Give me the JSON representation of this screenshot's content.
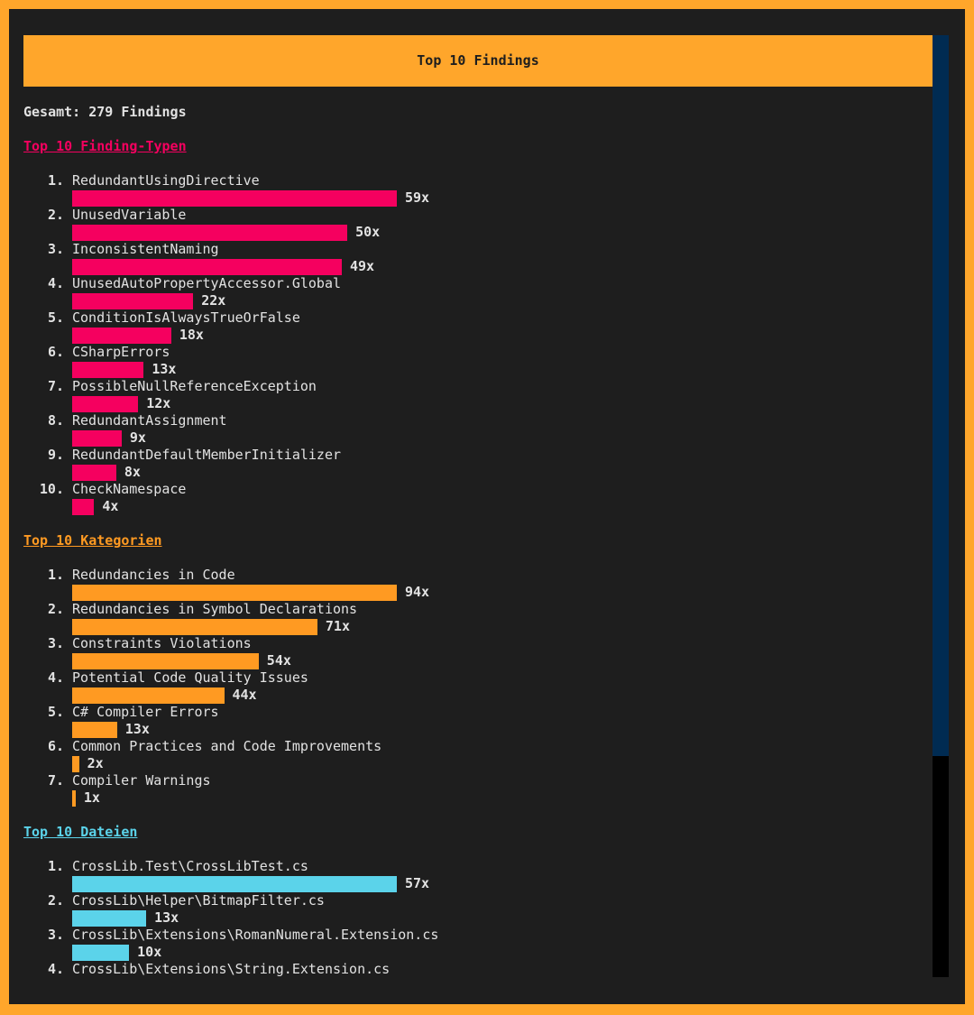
{
  "header": {
    "title": "Top 10 Findings"
  },
  "summary": "Gesamt: 279 Findings",
  "sections": [
    {
      "title": "Top 10 Finding-Typen",
      "color": "#f5005f",
      "items": [
        {
          "rank": "1.",
          "name": "RedundantUsingDirective",
          "count": 59,
          "count_label": "59x"
        },
        {
          "rank": "2.",
          "name": "UnusedVariable",
          "count": 50,
          "count_label": "50x"
        },
        {
          "rank": "3.",
          "name": "InconsistentNaming",
          "count": 49,
          "count_label": "49x"
        },
        {
          "rank": "4.",
          "name": "UnusedAutoPropertyAccessor.Global",
          "count": 22,
          "count_label": "22x"
        },
        {
          "rank": "5.",
          "name": "ConditionIsAlwaysTrueOrFalse",
          "count": 18,
          "count_label": "18x"
        },
        {
          "rank": "6.",
          "name": "CSharpErrors",
          "count": 13,
          "count_label": "13x"
        },
        {
          "rank": "7.",
          "name": "PossibleNullReferenceException",
          "count": 12,
          "count_label": "12x"
        },
        {
          "rank": "8.",
          "name": "RedundantAssignment",
          "count": 9,
          "count_label": "9x"
        },
        {
          "rank": "9.",
          "name": "RedundantDefaultMemberInitializer",
          "count": 8,
          "count_label": "8x"
        },
        {
          "rank": "10.",
          "name": "CheckNamespace",
          "count": 4,
          "count_label": "4x"
        }
      ]
    },
    {
      "title": "Top 10 Kategorien",
      "color": "#ff9a22",
      "items": [
        {
          "rank": "1.",
          "name": "Redundancies in Code",
          "count": 94,
          "count_label": "94x"
        },
        {
          "rank": "2.",
          "name": "Redundancies in Symbol Declarations",
          "count": 71,
          "count_label": "71x"
        },
        {
          "rank": "3.",
          "name": "Constraints Violations",
          "count": 54,
          "count_label": "54x"
        },
        {
          "rank": "4.",
          "name": "Potential Code Quality Issues",
          "count": 44,
          "count_label": "44x"
        },
        {
          "rank": "5.",
          "name": "C# Compiler Errors",
          "count": 13,
          "count_label": "13x"
        },
        {
          "rank": "6.",
          "name": "Common Practices and Code Improvements",
          "count": 2,
          "count_label": "2x"
        },
        {
          "rank": "7.",
          "name": "Compiler Warnings",
          "count": 1,
          "count_label": "1x"
        }
      ]
    },
    {
      "title": "Top 10 Dateien",
      "color": "#5bd3ea",
      "items": [
        {
          "rank": "1.",
          "name": "CrossLib.Test\\CrossLibTest.cs",
          "count": 57,
          "count_label": "57x"
        },
        {
          "rank": "2.",
          "name": "CrossLib\\Helper\\BitmapFilter.cs",
          "count": 13,
          "count_label": "13x"
        },
        {
          "rank": "3.",
          "name": "CrossLib\\Extensions\\RomanNumeral.Extension.cs",
          "count": 10,
          "count_label": "10x"
        },
        {
          "rank": "4.",
          "name": "CrossLib\\Extensions\\String.Extension.cs"
        }
      ]
    }
  ]
}
